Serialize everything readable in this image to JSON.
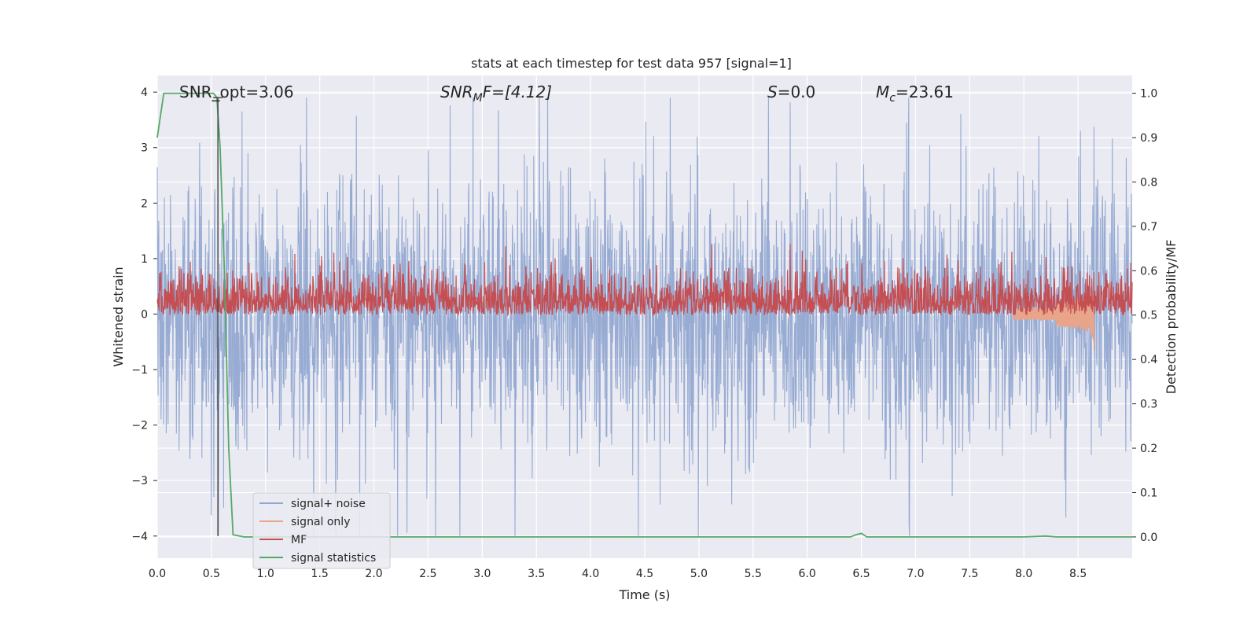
{
  "chart_data": {
    "type": "line",
    "title": "stats at each timestep for test data 957 [signal=1]",
    "xlabel": "Time (s)",
    "ylabel": "Whitened strain",
    "y2label": "Detection probability/MF",
    "xlim": [
      0.0,
      9.0
    ],
    "ylim": [
      -4.4,
      4.3
    ],
    "y2lim": [
      -0.048,
      1.04
    ],
    "xticks": [
      "0.0",
      "0.5",
      "1.0",
      "1.5",
      "2.0",
      "2.5",
      "3.0",
      "3.5",
      "4.0",
      "4.5",
      "5.0",
      "5.5",
      "6.0",
      "6.5",
      "7.0",
      "7.5",
      "8.0",
      "8.5"
    ],
    "yticks": [
      "4",
      "3",
      "2",
      "1",
      "0",
      "−1",
      "−2",
      "−3",
      "−4"
    ],
    "y2ticks": [
      "1.0",
      "0.9",
      "0.8",
      "0.7",
      "0.6",
      "0.5",
      "0.4",
      "0.3",
      "0.2",
      "0.1",
      "0.0"
    ],
    "grid": true,
    "legend_position": "lower-left",
    "annotations": {
      "snr_opt": "SNR_opt=3.06",
      "snr_mf": "SNR",
      "snr_mf_sub": "M",
      "snr_mf_rest": "F=[4.12]",
      "s_sym": "S",
      "s_val": "=0.0",
      "mc_sym": "M",
      "mc_sub": "c",
      "mc_val": "=23.61"
    },
    "marker_time": 0.56,
    "series": [
      {
        "name": "signal+ noise",
        "color": "#92a8d1",
        "axis": "left",
        "description_amplitude": 2.2,
        "range": [
          -4.0,
          3.9
        ]
      },
      {
        "name": "signal only",
        "color": "#e8a58a",
        "axis": "left",
        "chirp_end": 8.65,
        "chirp_amplitude_end": -0.6
      },
      {
        "name": "MF",
        "color": "#c44e52",
        "axis": "right",
        "range": [
          0.5,
          0.66
        ]
      },
      {
        "name": "signal statistics",
        "color": "#55a868",
        "axis": "right",
        "points": [
          [
            0.0,
            0.9
          ],
          [
            0.06,
            1.0
          ],
          [
            0.2,
            1.0
          ],
          [
            0.4,
            1.0
          ],
          [
            0.52,
            1.0
          ],
          [
            0.55,
            0.99
          ],
          [
            0.58,
            0.88
          ],
          [
            0.62,
            0.6
          ],
          [
            0.66,
            0.2
          ],
          [
            0.7,
            0.005
          ],
          [
            0.8,
            0.0
          ],
          [
            2.0,
            0.0
          ],
          [
            4.0,
            0.0
          ],
          [
            6.4,
            0.0
          ],
          [
            6.45,
            0.005
          ],
          [
            6.5,
            0.008
          ],
          [
            6.55,
            0.0
          ],
          [
            8.0,
            0.0
          ],
          [
            8.2,
            0.002
          ],
          [
            8.3,
            0.0
          ],
          [
            9.0,
            0.0
          ]
        ]
      }
    ]
  }
}
